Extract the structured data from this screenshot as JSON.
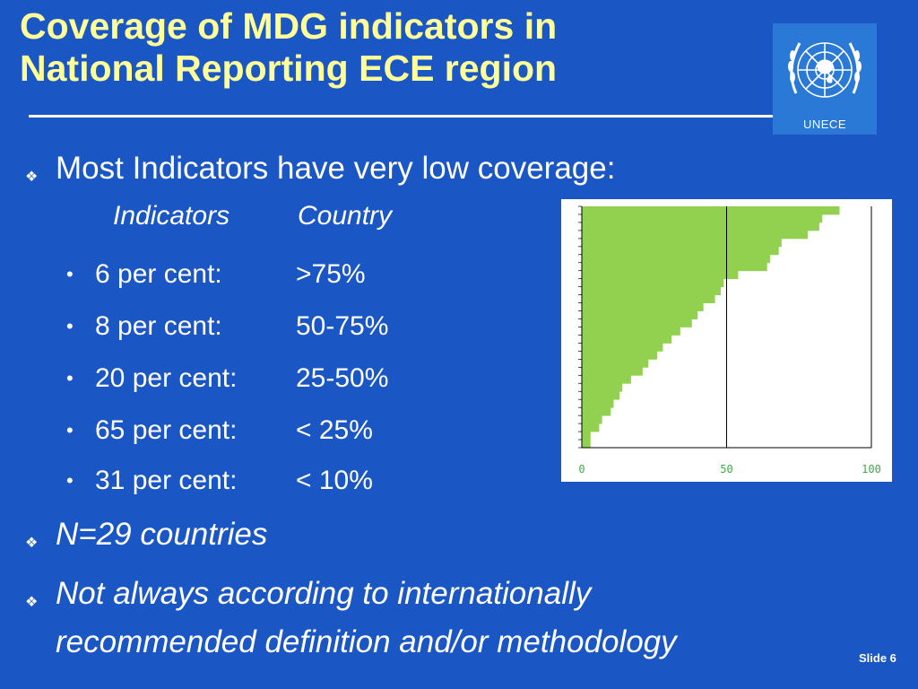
{
  "slide": {
    "title_line1": "Coverage of MDG indicators in",
    "title_line2": "National Reporting ECE region",
    "logo_text": "UNECE",
    "bullets": [
      {
        "text": "Most Indicators have very low coverage:"
      },
      {
        "text": "N=29 countries"
      },
      {
        "text_line1": "Not always according to internationally",
        "text_line2": "recommended definition and/or methodology"
      }
    ],
    "table_header": {
      "col1": "Indicators",
      "col2": "Country"
    },
    "rows": [
      {
        "a": "6 per cent:",
        "b": ">75%"
      },
      {
        "a": "8 per cent:",
        "b": "50-75%"
      },
      {
        "a": "20 per cent:",
        "b": "25-50%"
      },
      {
        "a": "65 per cent:",
        "b": "< 25%"
      },
      {
        "a": "31 per cent:",
        "b": "< 10%"
      }
    ],
    "slide_number": "Slide 6"
  },
  "colors": {
    "background": "#1a56c4",
    "title": "#ffff99",
    "bar_fill": "#92d050",
    "chart_bg": "#ffffff",
    "tick_label": "#3fa84a"
  },
  "chart_data": {
    "type": "bar",
    "orientation": "horizontal",
    "xlim": [
      0,
      100
    ],
    "x_ticks": [
      "0",
      "50",
      "100"
    ],
    "grid": "vertical line at 50",
    "values": [
      89,
      83,
      82,
      78,
      69,
      68,
      65,
      64,
      54,
      49,
      48,
      46,
      42,
      40,
      38,
      34,
      31,
      28,
      26,
      23,
      21,
      17,
      14,
      13,
      11,
      10,
      7,
      6,
      3,
      3
    ]
  }
}
